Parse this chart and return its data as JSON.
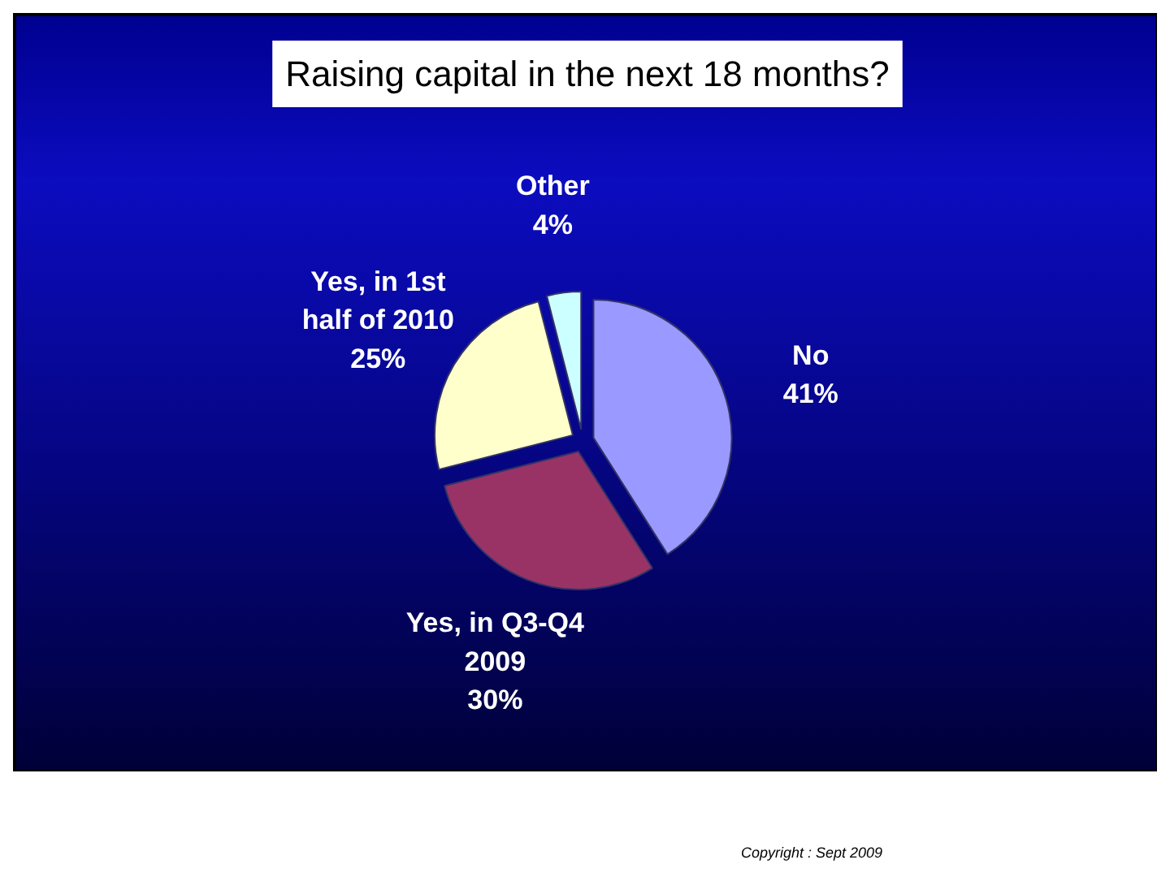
{
  "chart_data": {
    "type": "pie",
    "title": "Raising capital in the next 18 months?",
    "categories": [
      "No",
      "Yes, in Q3-Q4 2009",
      "Yes, in 1st half of 2010",
      "Other"
    ],
    "values": [
      41,
      30,
      25,
      4
    ],
    "colors": [
      "#9999ff",
      "#993366",
      "#ffffcc",
      "#ccffff"
    ],
    "value_labels": [
      "41%",
      "30%",
      "25%",
      "4%"
    ],
    "annotations": [
      "Copyright : Sept 2009"
    ]
  }
}
